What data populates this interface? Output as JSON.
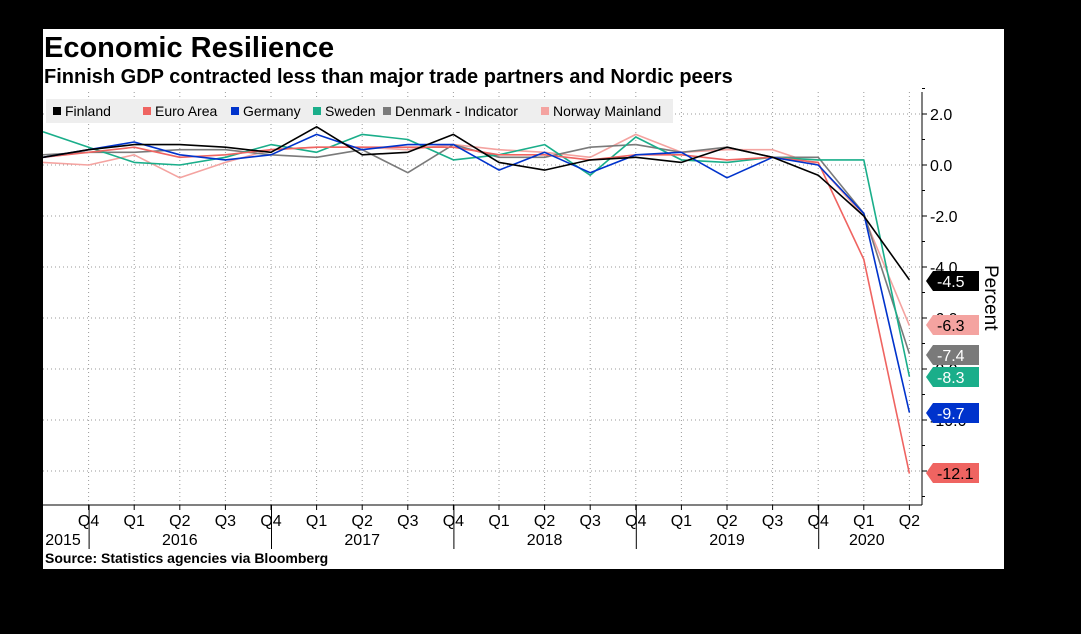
{
  "title": "Economic Resilience",
  "subtitle": "Finnish GDP contracted less than major trade partners and Nordic peers",
  "source": "Source: Statistics agencies via Bloomberg",
  "colors": {
    "background": "#000000",
    "card": "#ffffff",
    "grid": "#9a9a9a",
    "legend_bg": "#eeeeee"
  },
  "chart_data": {
    "type": "line",
    "title": "Economic Resilience",
    "subtitle": "Finnish GDP contracted less than major trade partners and Nordic peers",
    "ylabel": "Percent",
    "xlabel": "",
    "ylim": [
      -13.2,
      2.9
    ],
    "y_ticks": [
      2.0,
      0.0,
      -2.0,
      -4.0,
      -6.0,
      -8.0,
      -10.0,
      -12.0
    ],
    "y_tick_labels": [
      "2.0",
      "0.0",
      "-2.0",
      "-4.0",
      "-6.0",
      "-8.0",
      "-10.0",
      "-12.0"
    ],
    "grid": true,
    "legend_position": "top-left",
    "x": [
      "2015 Q3",
      "2015 Q4",
      "2016 Q1",
      "2016 Q2",
      "2016 Q3",
      "2016 Q4",
      "2017 Q1",
      "2017 Q2",
      "2017 Q3",
      "2017 Q4",
      "2018 Q1",
      "2018 Q2",
      "2018 Q3",
      "2018 Q4",
      "2019 Q1",
      "2019 Q2",
      "2019 Q3",
      "2019 Q4",
      "2020 Q1",
      "2020 Q2"
    ],
    "quarter_labels": [
      "Q4",
      "Q1",
      "Q2",
      "Q3",
      "Q4",
      "Q1",
      "Q2",
      "Q3",
      "Q4",
      "Q1",
      "Q2",
      "Q3",
      "Q4",
      "Q1",
      "Q2",
      "Q3",
      "Q4",
      "Q1",
      "Q2"
    ],
    "year_labels": [
      {
        "label": "2015",
        "start": 0,
        "end": 1
      },
      {
        "label": "2016",
        "start": 1,
        "end": 5
      },
      {
        "label": "2017",
        "start": 5,
        "end": 9
      },
      {
        "label": "2018",
        "start": 9,
        "end": 13
      },
      {
        "label": "2019",
        "start": 13,
        "end": 17
      },
      {
        "label": "2020",
        "start": 17,
        "end": 19
      }
    ],
    "series": [
      {
        "name": "Finland",
        "color": "#000000",
        "values": [
          0.3,
          0.6,
          0.8,
          0.8,
          0.7,
          0.5,
          1.5,
          0.4,
          0.5,
          1.2,
          0.1,
          -0.2,
          0.2,
          0.3,
          0.1,
          0.7,
          0.3,
          -0.4,
          -2.0,
          -4.5
        ]
      },
      {
        "name": "Euro Area",
        "color": "#ef6461",
        "values": [
          0.3,
          0.5,
          0.7,
          0.3,
          0.4,
          0.6,
          0.7,
          0.7,
          0.7,
          0.7,
          0.4,
          0.4,
          0.2,
          0.4,
          0.4,
          0.2,
          0.3,
          0.1,
          -3.7,
          -12.1
        ]
      },
      {
        "name": "Germany",
        "color": "#0033cc",
        "values": [
          0.3,
          0.6,
          0.9,
          0.4,
          0.2,
          0.4,
          1.2,
          0.6,
          0.8,
          0.8,
          -0.2,
          0.5,
          -0.3,
          0.4,
          0.5,
          -0.5,
          0.3,
          0.0,
          -1.9,
          -9.7
        ]
      },
      {
        "name": "Sweden",
        "color": "#1aae8a",
        "values": [
          1.3,
          0.7,
          0.1,
          0.0,
          0.3,
          0.8,
          0.5,
          1.2,
          1.0,
          0.2,
          0.4,
          0.8,
          -0.4,
          1.1,
          0.2,
          0.1,
          0.3,
          0.2,
          0.2,
          -8.3
        ]
      },
      {
        "name": "Denmark - Indicator",
        "color": "#7a7a7a",
        "values": [
          0.4,
          0.5,
          0.5,
          0.6,
          0.6,
          0.4,
          0.3,
          0.6,
          -0.3,
          0.8,
          0.3,
          0.3,
          0.7,
          0.8,
          0.5,
          0.7,
          0.3,
          0.3,
          -1.9,
          -7.4
        ]
      },
      {
        "name": "Norway Mainland",
        "color": "#f4a3a0",
        "values": [
          0.1,
          0.0,
          0.4,
          -0.5,
          0.1,
          0.6,
          0.7,
          0.7,
          0.6,
          0.8,
          0.6,
          0.5,
          0.3,
          1.2,
          0.5,
          0.6,
          0.6,
          0.0,
          -2.0,
          -6.3
        ]
      }
    ],
    "end_labels": [
      {
        "series": "Finland",
        "label": "-4.5",
        "value": -4.5,
        "bg": "#000000",
        "fg": "#ffffff"
      },
      {
        "series": "Norway Mainland",
        "label": "-6.3",
        "value": -6.3,
        "bg": "#f4a3a0",
        "fg": "#000000"
      },
      {
        "series": "Denmark - Indicator",
        "label": "-7.4",
        "value": -7.4,
        "bg": "#7a7a7a",
        "fg": "#ffffff"
      },
      {
        "series": "Sweden",
        "label": "-8.3",
        "value": -8.3,
        "bg": "#1aae8a",
        "fg": "#ffffff"
      },
      {
        "series": "Germany",
        "label": "-9.7",
        "value": -9.7,
        "bg": "#0033cc",
        "fg": "#ffffff"
      },
      {
        "series": "Euro Area",
        "label": "-12.1",
        "value": -12.1,
        "bg": "#ef6461",
        "fg": "#000000"
      }
    ]
  }
}
